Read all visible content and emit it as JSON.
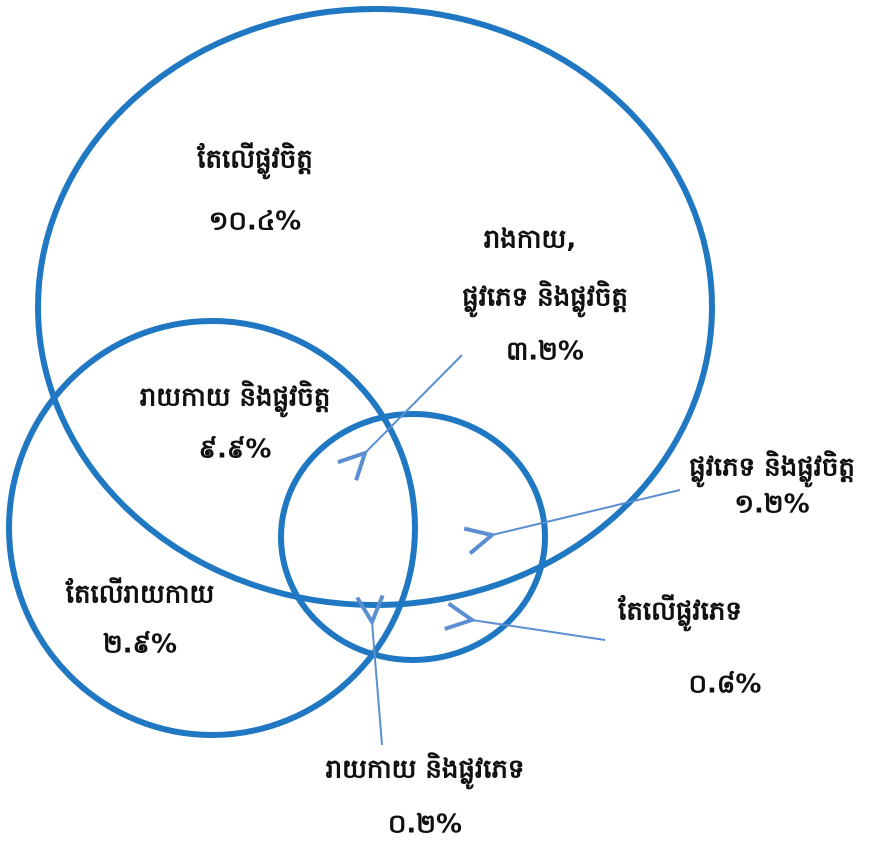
{
  "regions": [
    {
      "label": [
        "តែលើផ្លូវចិត្ត"
      ],
      "value": "១០.៤%"
    },
    {
      "label": [
        "រាងកាយ,",
        "ផ្លូវភេទ និងផ្លូវចិត្ត"
      ],
      "value": "៣.២%"
    },
    {
      "label": [
        "រាយកាយ និងផ្លូវចិត្ត"
      ],
      "value": "៩.៩%"
    },
    {
      "label": [
        "ផ្លូវភេទ និងផ្លូវចិត្ត"
      ],
      "value": "១.២%"
    },
    {
      "label": [
        "តែលើរាយកាយ"
      ],
      "value": "២.៩%"
    },
    {
      "label": [
        "តែលើផ្លូវភេទ"
      ],
      "value": "០.៨%"
    },
    {
      "label": [
        "រាយកាយ និងផ្លូវភេទ"
      ],
      "value": "០.២%"
    }
  ]
}
